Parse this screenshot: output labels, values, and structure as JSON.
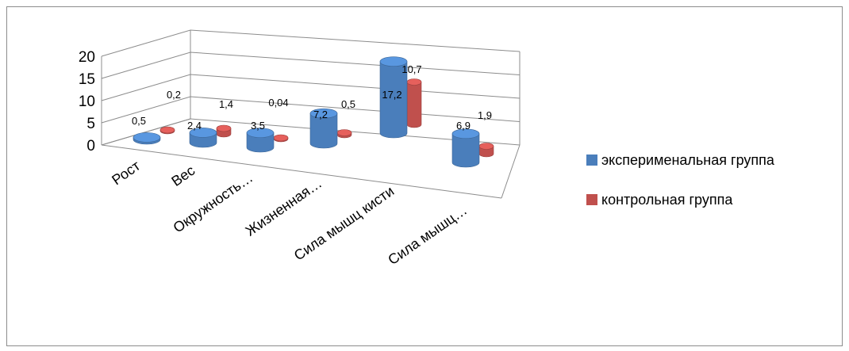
{
  "chart_data": {
    "type": "bar",
    "style": "3d-cylinder",
    "categories": [
      "Рост",
      "Вес",
      "Окружность…",
      "Жизненная…",
      "Сила мышц кисти",
      "Сила мышц…"
    ],
    "series": [
      {
        "name": "эксперименальная группа",
        "color": "#4a7ebb",
        "values": [
          0.5,
          2.4,
          3.5,
          7.2,
          17.2,
          6.9
        ],
        "labels": [
          "0,5",
          "2,4",
          "3,5",
          "7,2",
          "17,2",
          "6,9"
        ]
      },
      {
        "name": "контрольная группа",
        "color": "#c0504d",
        "values": [
          0.2,
          1.4,
          0.04,
          0.5,
          10.7,
          1.9
        ],
        "labels": [
          "0,2",
          "1,4",
          "0,04",
          "0,5",
          "10,7",
          "1,9"
        ]
      }
    ],
    "y_ticks": [
      "0",
      "5",
      "10",
      "15",
      "20"
    ],
    "ylim": [
      0,
      20
    ],
    "grid": true,
    "legend_position": "right"
  }
}
